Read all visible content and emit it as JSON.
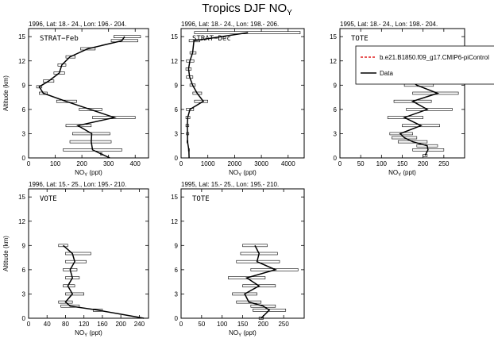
{
  "title": "Tropics DJF NO",
  "title_sub": "Y",
  "chart_data": [
    {
      "type": "line",
      "header": "1996, Lat: 18.- 24., Lon: 196.- 204.",
      "inset_label": "STRAT−Feb",
      "xlabel": "NO",
      "xlabel_sub": "Y",
      "xlabel_unit": "(ppt)",
      "ylabel": "Altitude (km)",
      "xlim": [
        0,
        450
      ],
      "ylim": [
        0,
        16
      ],
      "xticks": [
        0,
        100,
        200,
        300,
        400
      ],
      "yticks": [
        0,
        3,
        6,
        9,
        12,
        15
      ],
      "series": [
        {
          "name": "Data",
          "points": [
            {
              "y": 0.0,
              "x": 305,
              "lo": 305,
              "hi": 305
            },
            {
              "y": 0.5,
              "x": 272,
              "lo": 270,
              "hi": 275
            },
            {
              "y": 1.0,
              "x": 240,
              "lo": 130,
              "hi": 350
            },
            {
              "y": 2.0,
              "x": 235,
              "lo": 155,
              "hi": 310
            },
            {
              "y": 3.0,
              "x": 237,
              "lo": 165,
              "hi": 305
            },
            {
              "y": 4.0,
              "x": 185,
              "lo": 140,
              "hi": 235
            },
            {
              "y": 5.0,
              "x": 322,
              "lo": 240,
              "hi": 400
            },
            {
              "y": 6.0,
              "x": 232,
              "lo": 190,
              "hi": 275
            },
            {
              "y": 7.0,
              "x": 140,
              "lo": 105,
              "hi": 180
            },
            {
              "y": 8.0,
              "x": 55,
              "lo": 40,
              "hi": 70
            },
            {
              "y": 8.8,
              "x": 40,
              "lo": 30,
              "hi": 50
            },
            {
              "y": 9.5,
              "x": 75,
              "lo": 55,
              "hi": 95
            },
            {
              "y": 10.5,
              "x": 115,
              "lo": 95,
              "hi": 135
            },
            {
              "y": 11.5,
              "x": 125,
              "lo": 110,
              "hi": 140
            },
            {
              "y": 12.5,
              "x": 155,
              "lo": 140,
              "hi": 175
            },
            {
              "y": 13.5,
              "x": 222,
              "lo": 195,
              "hi": 250
            },
            {
              "y": 14.5,
              "x": 350,
              "lo": 310,
              "hi": 410
            },
            {
              "y": 15.0,
              "x": 360,
              "lo": 320,
              "hi": 420
            }
          ]
        }
      ]
    },
    {
      "type": "line",
      "header": "1996, Lat: 18.- 24., Lon: 198.- 206.",
      "inset_label": "STRAT−Dec",
      "xlabel": "NO",
      "xlabel_sub": "Y",
      "xlabel_unit": "(ppt)",
      "ylabel": "",
      "xlim": [
        0,
        4600
      ],
      "ylim": [
        0,
        16
      ],
      "xticks": [
        0,
        1000,
        2000,
        3000,
        4000
      ],
      "yticks": [
        0,
        3,
        6,
        9,
        12,
        15
      ],
      "series": [
        {
          "name": "Data",
          "points": [
            {
              "y": 0.0,
              "x": 300,
              "lo": 300,
              "hi": 300
            },
            {
              "y": 1.0,
              "x": 290,
              "lo": 270,
              "hi": 310
            },
            {
              "y": 2.0,
              "x": 240,
              "lo": 220,
              "hi": 260
            },
            {
              "y": 3.0,
              "x": 240,
              "lo": 200,
              "hi": 290
            },
            {
              "y": 4.0,
              "x": 230,
              "lo": 180,
              "hi": 290
            },
            {
              "y": 5.0,
              "x": 250,
              "lo": 180,
              "hi": 330
            },
            {
              "y": 6.0,
              "x": 330,
              "lo": 200,
              "hi": 470
            },
            {
              "y": 7.0,
              "x": 830,
              "lo": 500,
              "hi": 1000
            },
            {
              "y": 8.0,
              "x": 600,
              "lo": 440,
              "hi": 770
            },
            {
              "y": 9.0,
              "x": 430,
              "lo": 330,
              "hi": 530
            },
            {
              "y": 10.0,
              "x": 320,
              "lo": 200,
              "hi": 440
            },
            {
              "y": 11.0,
              "x": 280,
              "lo": 180,
              "hi": 380
            },
            {
              "y": 12.0,
              "x": 330,
              "lo": 200,
              "hi": 480
            },
            {
              "y": 13.0,
              "x": 430,
              "lo": 330,
              "hi": 560
            },
            {
              "y": 14.5,
              "x": 480,
              "lo": 300,
              "hi": 700
            },
            {
              "y": 15.5,
              "x": 2500,
              "lo": 500,
              "hi": 4450
            }
          ]
        }
      ]
    },
    {
      "type": "line",
      "header": "1995, Lat: 18.- 24., Lon: 198.- 204.",
      "inset_label": "TOTE",
      "xlabel": "NO",
      "xlabel_sub": "Y",
      "xlabel_unit": "(ppt)",
      "ylabel": "",
      "xlim": [
        0,
        300
      ],
      "ylim": [
        0,
        16
      ],
      "xticks": [
        0,
        50,
        100,
        150,
        200,
        250
      ],
      "yticks": [
        0,
        3,
        6,
        9,
        12,
        15
      ],
      "legend": {
        "position": "top-right",
        "entries": [
          {
            "name": "b.e21.B1850.f09_g17.CMIP6-piControl",
            "color": "#e02020",
            "dash": true
          },
          {
            "name": "Data",
            "color": "#000000",
            "dash": false
          }
        ]
      },
      "series": [
        {
          "name": "Data",
          "points": [
            {
              "y": 0.3,
              "x": 205,
              "lo": 200,
              "hi": 210
            },
            {
              "y": 1.0,
              "x": 212,
              "lo": 175,
              "hi": 250
            },
            {
              "y": 1.5,
              "x": 210,
              "lo": 185,
              "hi": 235
            },
            {
              "y": 2.0,
              "x": 175,
              "lo": 140,
              "hi": 210
            },
            {
              "y": 2.5,
              "x": 155,
              "lo": 125,
              "hi": 185
            },
            {
              "y": 3.0,
              "x": 145,
              "lo": 120,
              "hi": 175
            },
            {
              "y": 4.0,
              "x": 195,
              "lo": 150,
              "hi": 240
            },
            {
              "y": 5.0,
              "x": 155,
              "lo": 115,
              "hi": 200
            },
            {
              "y": 6.0,
              "x": 210,
              "lo": 160,
              "hi": 270
            },
            {
              "y": 7.0,
              "x": 175,
              "lo": 130,
              "hi": 220
            },
            {
              "y": 8.0,
              "x": 235,
              "lo": 175,
              "hi": 285
            },
            {
              "y": 9.0,
              "x": 185,
              "lo": 155,
              "hi": 225
            },
            {
              "y": 10.0,
              "x": 160,
              "lo": 130,
              "hi": 190
            }
          ]
        }
      ]
    },
    {
      "type": "line",
      "header": "1996, Lat: 15.- 25., Lon: 195.- 210.",
      "inset_label": "VOTE",
      "xlabel": "NO",
      "xlabel_sub": "Y",
      "xlabel_unit": "(ppt)",
      "ylabel": "Altitude (km)",
      "xlim": [
        0,
        260
      ],
      "ylim": [
        0,
        16
      ],
      "xticks": [
        0,
        40,
        80,
        120,
        160,
        200,
        240
      ],
      "yticks": [
        0,
        3,
        6,
        9,
        12,
        15
      ],
      "series": [
        {
          "name": "Data",
          "points": [
            {
              "y": 0.0,
              "x": 250,
              "lo": 250,
              "hi": 250
            },
            {
              "y": 1.0,
              "x": 150,
              "lo": 140,
              "hi": 160
            },
            {
              "y": 1.5,
              "x": 90,
              "lo": 70,
              "hi": 110
            },
            {
              "y": 2.0,
              "x": 80,
              "lo": 65,
              "hi": 95
            },
            {
              "y": 3.0,
              "x": 95,
              "lo": 80,
              "hi": 120
            },
            {
              "y": 4.0,
              "x": 85,
              "lo": 75,
              "hi": 100
            },
            {
              "y": 5.0,
              "x": 95,
              "lo": 80,
              "hi": 110
            },
            {
              "y": 6.0,
              "x": 90,
              "lo": 75,
              "hi": 105
            },
            {
              "y": 7.0,
              "x": 100,
              "lo": 80,
              "hi": 125
            },
            {
              "y": 8.0,
              "x": 95,
              "lo": 80,
              "hi": 135
            },
            {
              "y": 9.0,
              "x": 75,
              "lo": 65,
              "hi": 85
            }
          ]
        }
      ]
    },
    {
      "type": "line",
      "header": "1995, Lat: 15.- 25., Lon: 195.- 210.",
      "inset_label": "TOTE",
      "xlabel": "NO",
      "xlabel_sub": "Y",
      "xlabel_unit": "(ppt)",
      "ylabel": "",
      "xlim": [
        0,
        300
      ],
      "ylim": [
        0,
        16
      ],
      "xticks": [
        0,
        50,
        100,
        150,
        200,
        250
      ],
      "yticks": [
        0,
        3,
        6,
        9,
        12,
        15
      ],
      "series": [
        {
          "name": "Data",
          "points": [
            {
              "y": 0.0,
              "x": 195,
              "lo": 190,
              "hi": 200
            },
            {
              "y": 1.0,
              "x": 215,
              "lo": 175,
              "hi": 255
            },
            {
              "y": 1.5,
              "x": 200,
              "lo": 170,
              "hi": 230
            },
            {
              "y": 2.0,
              "x": 165,
              "lo": 135,
              "hi": 195
            },
            {
              "y": 3.0,
              "x": 155,
              "lo": 125,
              "hi": 185
            },
            {
              "y": 4.0,
              "x": 190,
              "lo": 150,
              "hi": 230
            },
            {
              "y": 5.0,
              "x": 160,
              "lo": 115,
              "hi": 205
            },
            {
              "y": 6.0,
              "x": 230,
              "lo": 170,
              "hi": 285
            },
            {
              "y": 7.0,
              "x": 185,
              "lo": 135,
              "hi": 240
            },
            {
              "y": 8.0,
              "x": 190,
              "lo": 145,
              "hi": 235
            },
            {
              "y": 9.0,
              "x": 180,
              "lo": 150,
              "hi": 210
            }
          ]
        }
      ]
    }
  ]
}
